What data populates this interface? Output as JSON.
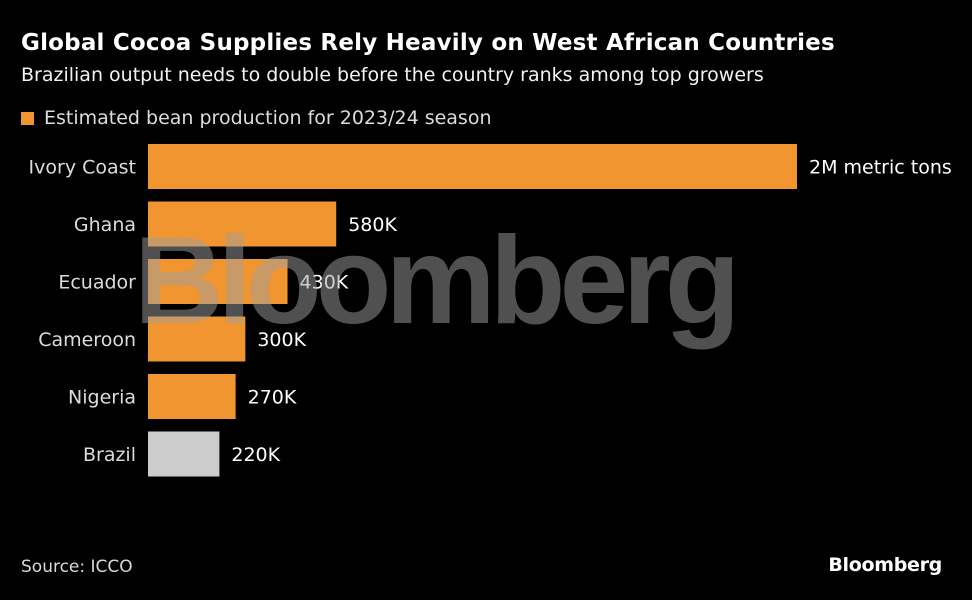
{
  "title": "Global Cocoa Supplies Rely Heavily on West African Countries",
  "subtitle": "Brazilian output needs to double before the country ranks among top growers",
  "legend_label": "Estimated bean production for 2023/24 season",
  "source": "Source: ICCO",
  "logo": "Bloomberg",
  "watermark": "Bloomberg",
  "colors": {
    "primary": "#f0952f",
    "highlight": "#cccccc",
    "background": "#000000"
  },
  "chart_data": {
    "type": "bar",
    "orientation": "horizontal",
    "categories": [
      "Ivory Coast",
      "Ghana",
      "Ecuador",
      "Cameroon",
      "Nigeria",
      "Brazil"
    ],
    "values": [
      2000000,
      580000,
      430000,
      300000,
      270000,
      220000
    ],
    "value_labels": [
      "2M metric tons",
      "580K",
      "430K",
      "300K",
      "270K",
      "220K"
    ],
    "highlighted_category": "Brazil",
    "unit": "metric tons",
    "grid": false,
    "legend_position": "top-left"
  }
}
